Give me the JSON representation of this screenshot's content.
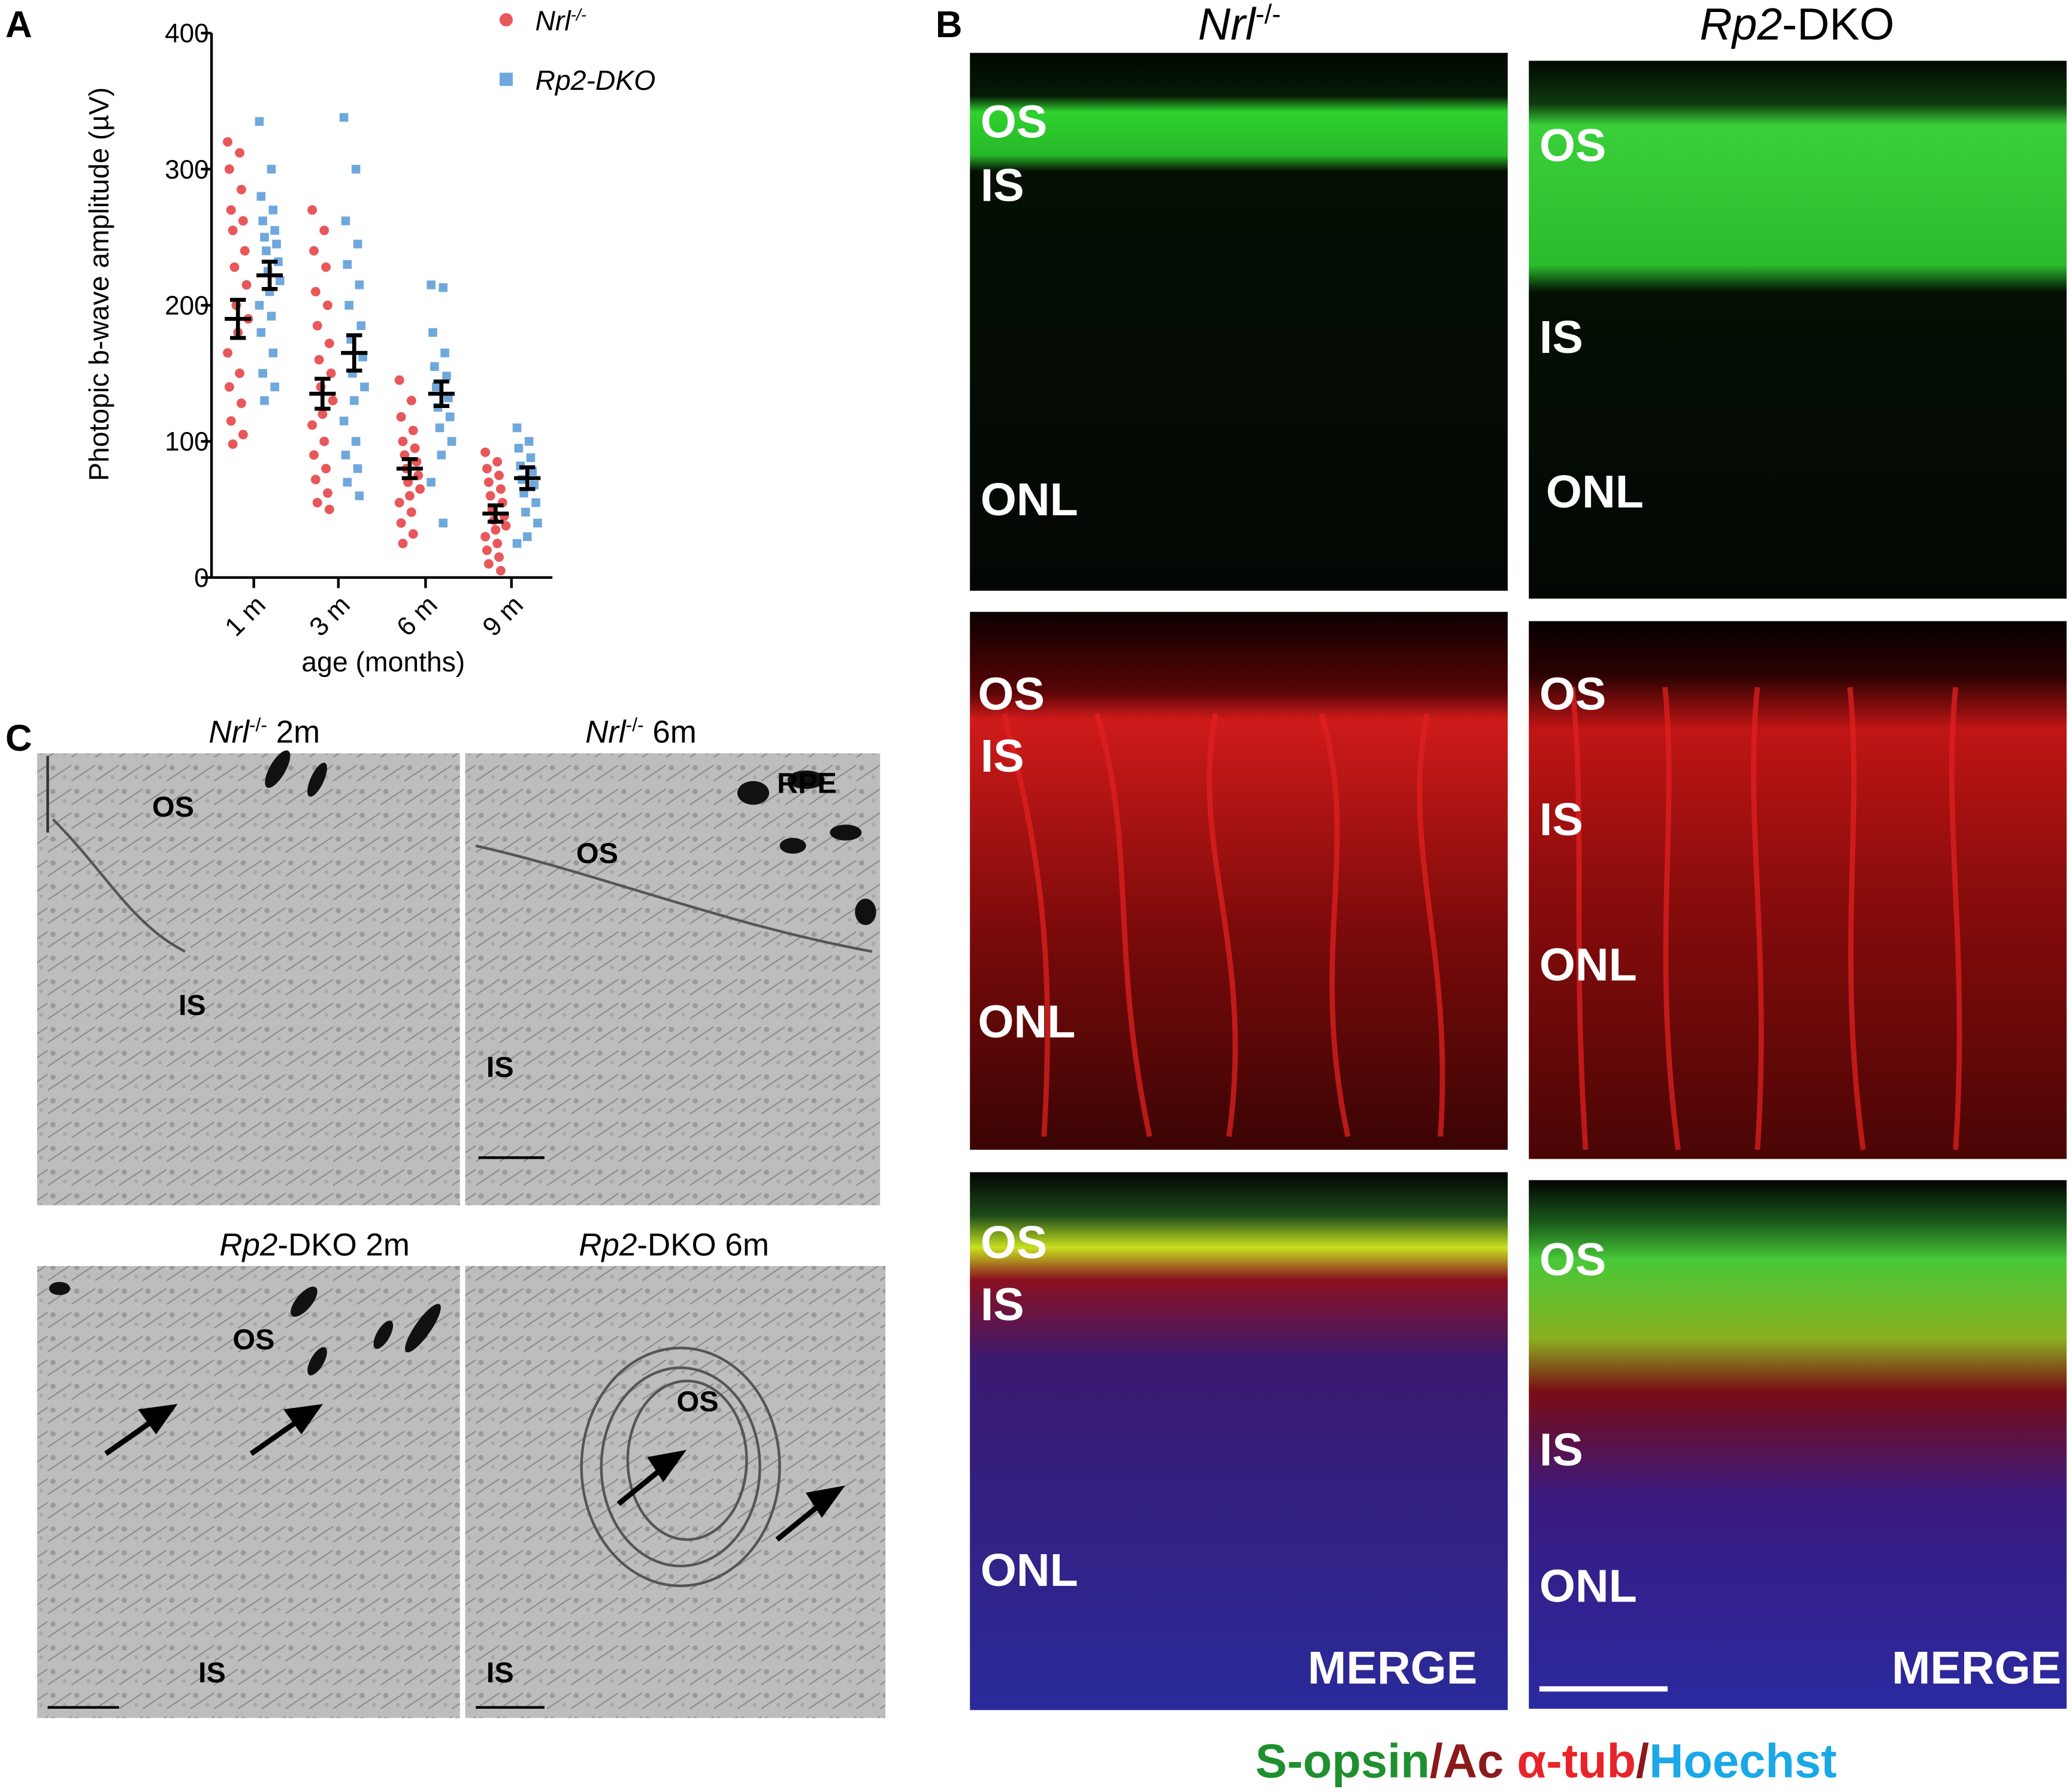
{
  "panel_letters": [
    "A",
    "B",
    "C"
  ],
  "chart_data": {
    "type": "scatter",
    "ylabel": "Photopic b-wave amplitude (µV)",
    "xlabel": "age (months)",
    "categories": [
      "1 m",
      "3 m",
      "6 m",
      "9 m"
    ],
    "ylim": [
      0,
      400
    ],
    "yticks": [
      0,
      100,
      200,
      300,
      400
    ],
    "series": [
      {
        "name": "Nrl",
        "name_sup": "-/-",
        "color": "#e8575a",
        "marker": "circle",
        "values": [
          [
            320,
            312,
            300,
            285,
            270,
            262,
            255,
            240,
            228,
            215,
            200,
            190,
            180,
            165,
            150,
            140,
            128,
            115,
            105,
            98
          ],
          [
            270,
            255,
            240,
            228,
            210,
            200,
            185,
            172,
            160,
            150,
            140,
            130,
            120,
            112,
            100,
            90,
            80,
            72,
            62,
            55,
            50
          ],
          [
            145,
            130,
            118,
            108,
            100,
            95,
            90,
            85,
            80,
            75,
            70,
            65,
            60,
            55,
            48,
            40,
            32,
            25
          ],
          [
            92,
            85,
            80,
            75,
            70,
            65,
            60,
            55,
            50,
            45,
            42,
            38,
            35,
            30,
            25,
            20,
            15,
            10,
            5
          ]
        ],
        "mean": [
          190,
          135,
          80,
          47
        ],
        "sem": [
          14,
          11,
          7,
          6
        ]
      },
      {
        "name": "Rp2-DKO",
        "color": "#6fa8dc",
        "marker": "square",
        "values": [
          [
            335,
            300,
            280,
            270,
            262,
            255,
            250,
            245,
            240,
            232,
            225,
            218,
            210,
            200,
            192,
            180,
            165,
            150,
            140,
            130
          ],
          [
            338,
            300,
            262,
            245,
            230,
            215,
            200,
            185,
            175,
            162,
            150,
            140,
            130,
            115,
            100,
            90,
            80,
            70,
            60
          ],
          [
            215,
            213,
            180,
            165,
            155,
            148,
            140,
            132,
            125,
            118,
            110,
            100,
            90,
            70,
            40
          ],
          [
            110,
            100,
            95,
            88,
            82,
            78,
            72,
            68,
            62,
            55,
            48,
            40,
            30,
            25
          ]
        ],
        "mean": [
          222,
          165,
          135,
          73
        ],
        "sem": [
          10,
          13,
          9,
          8
        ]
      }
    ]
  },
  "panel_b": {
    "columns": [
      {
        "italic": "Nrl",
        "sup": "-/-"
      },
      {
        "italic": "Rp2",
        "text": "-DKO"
      }
    ],
    "images": [
      {
        "labels": [
          "OS",
          "IS",
          "ONL"
        ]
      },
      {
        "labels": [
          "OS",
          "IS",
          "ONL"
        ]
      },
      {
        "labels": [
          "OS",
          "IS",
          "ONL"
        ]
      },
      {
        "labels": [
          "OS",
          "IS",
          "ONL"
        ]
      },
      {
        "labels": [
          "OS",
          "IS",
          "ONL",
          "MERGE"
        ]
      },
      {
        "labels": [
          "OS",
          "IS",
          "ONL",
          "MERGE"
        ]
      }
    ],
    "stain_legend": [
      {
        "text": "S-opsin",
        "color": "#1f8f2f"
      },
      {
        "text": "/",
        "color": "#8b1a1a"
      },
      {
        "text": "Ac",
        "color": "#8b1a1a"
      },
      {
        "text": "α-tub",
        "color": "#e8242a"
      },
      {
        "text": "/",
        "color": "#8b1a1a"
      },
      {
        "text": "Hoechst",
        "color": "#1aa8e6"
      }
    ]
  },
  "panel_c": {
    "images": [
      {
        "title": {
          "italic": "Nrl",
          "sup": "-/-",
          "text": " 2m"
        },
        "labels": [
          "OS",
          "IS"
        ]
      },
      {
        "title": {
          "italic": "Nrl",
          "sup": "-/-",
          "text": " 6m"
        },
        "labels": [
          "RPE",
          "OS",
          "IS"
        ]
      },
      {
        "title": {
          "italic": "Rp2",
          "text": "-DKO 2m"
        },
        "labels": [
          "OS",
          "IS"
        ]
      },
      {
        "title": {
          "italic": "Rp2",
          "text": "-DKO 6m"
        },
        "labels": [
          "OS",
          "IS"
        ]
      }
    ]
  }
}
